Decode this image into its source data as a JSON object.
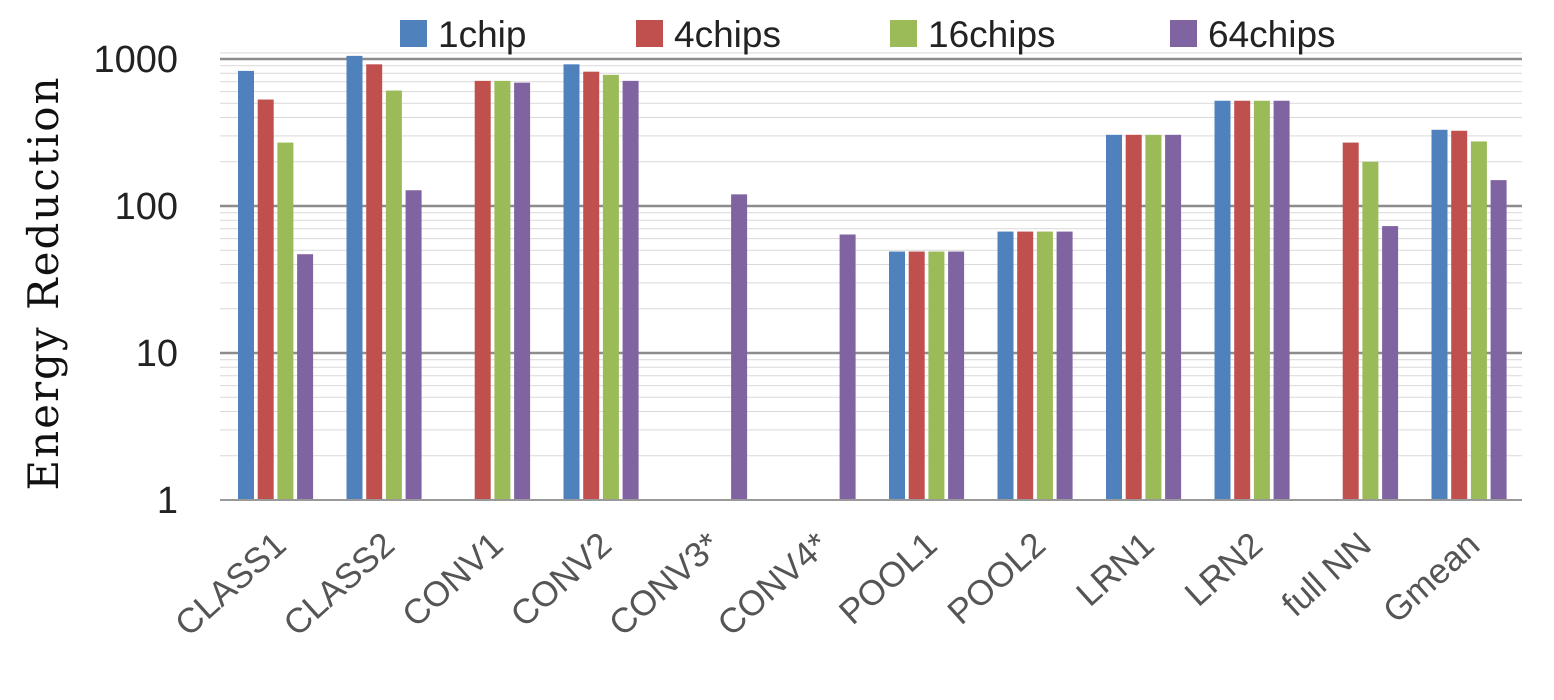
{
  "chart_data": {
    "type": "bar",
    "ylabel": "Energy Reduction",
    "xlabel": "",
    "yscale": "log",
    "ylim": [
      1,
      1100
    ],
    "yticks": [
      "1",
      "10",
      "100",
      "1000"
    ],
    "ytick_values": [
      1,
      10,
      100,
      1000
    ],
    "grid": true,
    "legend_position": "top",
    "categories": [
      "CLASS1",
      "CLASS2",
      "CONV1",
      "CONV2",
      "CONV3*",
      "CONV4*",
      "POOL1",
      "POOL2",
      "LRN1",
      "LRN2",
      "full NN",
      "Gmean"
    ],
    "series": [
      {
        "name": "1chip",
        "color": "#4F81BD",
        "values": [
          830,
          1050,
          null,
          920,
          null,
          null,
          49,
          67,
          305,
          520,
          null,
          330
        ]
      },
      {
        "name": "4chips",
        "color": "#C0504D",
        "values": [
          530,
          920,
          710,
          820,
          null,
          null,
          49,
          67,
          305,
          520,
          270,
          325
        ]
      },
      {
        "name": "16chips",
        "color": "#9BBB59",
        "values": [
          270,
          610,
          710,
          780,
          null,
          null,
          49,
          67,
          305,
          520,
          200,
          275
        ]
      },
      {
        "name": "64chips",
        "color": "#8064A2",
        "values": [
          47,
          128,
          690,
          710,
          120,
          64,
          49,
          67,
          305,
          520,
          73,
          150
        ]
      }
    ]
  }
}
